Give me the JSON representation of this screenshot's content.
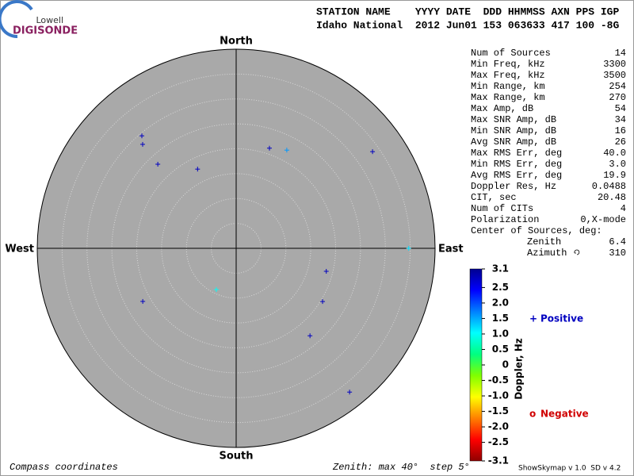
{
  "logo": {
    "line1": "Lowell",
    "line2": "DIGISONDE"
  },
  "header": {
    "columns": "STATION NAME    YYYY DATE  DDD HHMMSS AXN PPS IGP",
    "values": "Idaho National  2012 Jun01 153 063633 417 100 -8G"
  },
  "chart_data": {
    "type": "skymap",
    "directions": {
      "north": "North",
      "south": "South",
      "west": "West",
      "east": "East"
    },
    "rlim": [
      0,
      40
    ],
    "rings": [
      5,
      10,
      15,
      20,
      25,
      30,
      35
    ],
    "points": {
      "zenith": [
        29.5,
        28.1,
        23.1,
        17.7,
        21.2,
        22.2,
        33.6,
        34.7,
        18.7,
        20.4,
        23.0,
        36.8,
        9.2,
        21.6
      ],
      "azimuth": [
        320,
        318,
        317,
        334,
        18.4,
        27.3,
        54.7,
        90,
        104.3,
        121.6,
        139.8,
        141.7,
        205.7,
        240.4
      ],
      "doppler": [
        2.8,
        2.8,
        2.8,
        2.8,
        2.8,
        1.6,
        2.8,
        1.2,
        2.8,
        2.8,
        2.8,
        2.8,
        1.0,
        2.8
      ]
    },
    "colorbar": {
      "title": "Doppler, Hz",
      "lim": [
        -3.1,
        3.1
      ],
      "ticks": [
        3.1,
        2.5,
        {
          "value": 2,
          "label": "2.0"
        },
        1.5,
        {
          "value": 1,
          "label": "1.0"
        },
        0.5,
        0,
        -0.5,
        {
          "value": -1,
          "label": "-1.0"
        },
        -1.5,
        {
          "value": -2,
          "label": "-2.0"
        },
        -2.5,
        -3.1
      ],
      "colors": [
        "#000090",
        "#0000ff",
        "#0080ff",
        "#00ffff",
        "#00ff80",
        "#80ff00",
        "#ffff00",
        "#ff8000",
        "#ff0000",
        "#900000"
      ]
    },
    "legend": [
      {
        "symbol": "+",
        "name": "Positive",
        "color": "#0000c0"
      },
      {
        "symbol": "o",
        "name": "Negative",
        "color": "#d00000"
      }
    ]
  },
  "stats": [
    {
      "label": "Num of Sources",
      "value": 14
    },
    {
      "label": "Min Freq, kHz",
      "value": 3300
    },
    {
      "label": "Max Freq, kHz",
      "value": 3500
    },
    {
      "label": "Min Range, km",
      "value": 254
    },
    {
      "label": "Max Range, km",
      "value": 270
    },
    {
      "label": "Max Amp, dB",
      "value": 54
    },
    {
      "label": "Max SNR Amp, dB",
      "value": 34
    },
    {
      "label": "Min SNR Amp, dB",
      "value": 16
    },
    {
      "label": "Avg SNR Amp, dB",
      "value": 26
    },
    {
      "label": "Max RMS Err, deg",
      "value": "40.0"
    },
    {
      "label": "Min RMS Err, deg",
      "value": "3.0"
    },
    {
      "label": "Avg RMS Err, deg",
      "value": 19.9
    },
    {
      "label": "Doppler Res, Hz",
      "value": 0.0488
    },
    {
      "label": "CIT, sec",
      "value": 20.48
    },
    {
      "label": "Num of CITs",
      "value": 4
    },
    {
      "label": "Polarization",
      "value": "0,X-mode"
    }
  ],
  "center": {
    "title": "Center of Sources, deg:",
    "rows": [
      {
        "label": "Zenith",
        "value": 6.4
      },
      {
        "label": "Azimuth",
        "value": 310
      }
    ]
  },
  "footer": {
    "left": "Compass coordinates",
    "middle": "Zenith: max 40°  step 5°",
    "right": "ShowSkymap v 1.0  SD v 4.2"
  }
}
